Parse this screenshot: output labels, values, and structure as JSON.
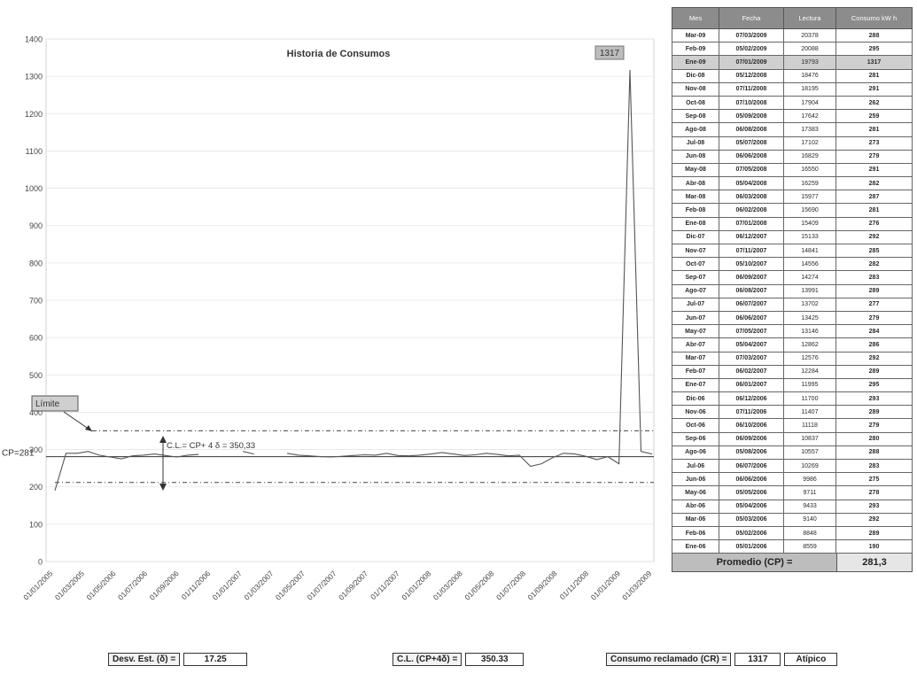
{
  "chart_data": {
    "type": "line",
    "title": "Historia de Consumos",
    "ylim": [
      0,
      1400
    ],
    "yticks": [
      0,
      100,
      200,
      300,
      400,
      500,
      600,
      700,
      800,
      900,
      1000,
      1100,
      1200,
      1300,
      1400
    ],
    "xtick_labels": [
      "01/01/2005",
      "01/03/2005",
      "01/05/2006",
      "01/07/2006",
      "01/09/2006",
      "01/11/2006",
      "01/01/2007",
      "01/03/2007",
      "01/05/2007",
      "01/07/2007",
      "01/09/2007",
      "01/11/2007",
      "01/01/2008",
      "01/03/2008",
      "01/05/2008",
      "01/07/2008",
      "01/09/2008",
      "01/11/2008",
      "01/01/2009",
      "01/03/2009"
    ],
    "series": [
      {
        "values": [
          190,
          290,
          290,
          295,
          285,
          280,
          275,
          283,
          285,
          288,
          284,
          280,
          285,
          287,
          null,
          null,
          null,
          295,
          288,
          null,
          null,
          290,
          285,
          283,
          281,
          280,
          282,
          284,
          286,
          285,
          290,
          284,
          283,
          285,
          288,
          292,
          288,
          284,
          286,
          290,
          287,
          283,
          285,
          255,
          262,
          278,
          290,
          288,
          282,
          273,
          281,
          262,
          1317,
          295,
          288
        ]
      }
    ],
    "reference_lines": [
      {
        "label": "C.L.= CP+ 4 δ = 350,33",
        "value": 350.33
      },
      {
        "label": "CP=281",
        "value": 281
      },
      {
        "label": "",
        "value": 211.67
      }
    ],
    "annotations": [
      {
        "text": "1317"
      },
      {
        "text": "Límite"
      }
    ]
  },
  "table": {
    "headers": [
      "Mes",
      "Fecha",
      "Lectura",
      "Consumo kW h"
    ],
    "rows": [
      [
        "Mar-09",
        "07/03/2009",
        "20378",
        "288"
      ],
      [
        "Feb-09",
        "05/02/2009",
        "20088",
        "295"
      ],
      [
        "Ene-09",
        "07/01/2009",
        "19793",
        "1317"
      ],
      [
        "Dic-08",
        "05/12/2008",
        "18476",
        "281"
      ],
      [
        "Nov-08",
        "07/11/2008",
        "18195",
        "291"
      ],
      [
        "Oct-08",
        "07/10/2008",
        "17904",
        "262"
      ],
      [
        "Sep-08",
        "05/09/2008",
        "17642",
        "259"
      ],
      [
        "Ago-08",
        "06/08/2008",
        "17383",
        "281"
      ],
      [
        "Jul-08",
        "05/07/2008",
        "17102",
        "273"
      ],
      [
        "Jun-08",
        "06/06/2008",
        "16829",
        "279"
      ],
      [
        "May-08",
        "07/05/2008",
        "16550",
        "291"
      ],
      [
        "Abr-08",
        "05/04/2008",
        "16259",
        "282"
      ],
      [
        "Mar-08",
        "06/03/2008",
        "15977",
        "287"
      ],
      [
        "Feb-08",
        "06/02/2008",
        "15690",
        "281"
      ],
      [
        "Ene-08",
        "07/01/2008",
        "15409",
        "276"
      ],
      [
        "Dic-07",
        "06/12/2007",
        "15133",
        "292"
      ],
      [
        "Nov-07",
        "07/11/2007",
        "14841",
        "285"
      ],
      [
        "Oct-07",
        "05/10/2007",
        "14556",
        "282"
      ],
      [
        "Sep-07",
        "06/09/2007",
        "14274",
        "283"
      ],
      [
        "Ago-07",
        "06/08/2007",
        "13991",
        "289"
      ],
      [
        "Jul-07",
        "06/07/2007",
        "13702",
        "277"
      ],
      [
        "Jun-07",
        "06/06/2007",
        "13425",
        "279"
      ],
      [
        "May-07",
        "07/05/2007",
        "13146",
        "284"
      ],
      [
        "Abr-07",
        "05/04/2007",
        "12862",
        "286"
      ],
      [
        "Mar-07",
        "07/03/2007",
        "12576",
        "292"
      ],
      [
        "Feb-07",
        "06/02/2007",
        "12284",
        "289"
      ],
      [
        "Ene-07",
        "06/01/2007",
        "11995",
        "295"
      ],
      [
        "Dic-06",
        "06/12/2006",
        "11700",
        "293"
      ],
      [
        "Nov-06",
        "07/11/2006",
        "11407",
        "289"
      ],
      [
        "Oct-06",
        "06/10/2006",
        "11118",
        "279"
      ],
      [
        "Sep-06",
        "06/09/2006",
        "10837",
        "280"
      ],
      [
        "Ago-06",
        "05/08/2006",
        "10557",
        "288"
      ],
      [
        "Jul-06",
        "06/07/2006",
        "10269",
        "283"
      ],
      [
        "Jun-06",
        "06/06/2006",
        "9986",
        "275"
      ],
      [
        "May-06",
        "05/05/2006",
        "9711",
        "278"
      ],
      [
        "Abr-06",
        "05/04/2006",
        "9433",
        "293"
      ],
      [
        "Mar-06",
        "05/03/2006",
        "9140",
        "292"
      ],
      [
        "Feb-06",
        "05/02/2006",
        "8848",
        "289"
      ],
      [
        "Ene-06",
        "05/01/2006",
        "8559",
        "190"
      ]
    ],
    "highlight_row": 2,
    "promedio_label": "Promedio (CP) =",
    "promedio_value": "281,3"
  },
  "footer": {
    "desv_label": "Desv. Est. (δ) =",
    "desv_value": "17.25",
    "cl_label": "C.L. (CP+4δ) =",
    "cl_value": "350.33",
    "cr_label": "Consumo reclamado (CR) =",
    "cr_value": "1317",
    "cr_status": "Atípico"
  }
}
